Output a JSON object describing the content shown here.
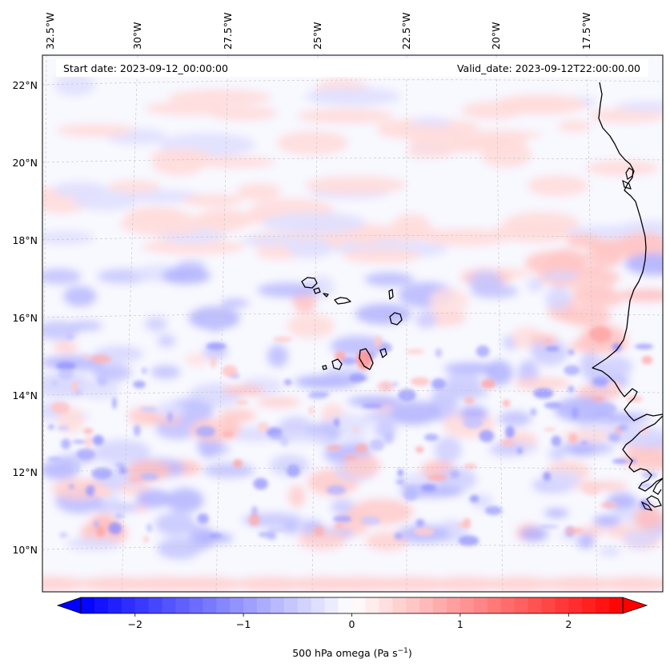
{
  "map": {
    "start_date": "Start date: 2023-09-12_00:00:00",
    "valid_date": "Valid_date: 2023-09-12T22:00:00.00",
    "lon_labels": [
      "32.5°W",
      "30°W",
      "27.5°W",
      "25°W",
      "22.5°W",
      "20°W",
      "17.5°W"
    ],
    "lat_labels": [
      "22°N",
      "20°N",
      "18°N",
      "16°N",
      "14°N",
      "12°N",
      "10°N"
    ],
    "field_name": "500 hPa omega"
  },
  "colorbar": {
    "label_prefix": "500 hPa omega (Pa s",
    "label_exp": "−1",
    "label_suffix": ")",
    "ticks": [
      "−2",
      "−1",
      "0",
      "1",
      "2"
    ],
    "tick_values": [
      -2,
      -1,
      0,
      1,
      2
    ],
    "min": -2.75,
    "max": 2.75,
    "neg_color": "#0000ff",
    "mid_color": "#ffffff",
    "pos_color": "#ff0000"
  },
  "colors": {
    "coastline": "#000000",
    "gridline": "#c8c8c8",
    "background_tint": "#f7f8ff"
  }
}
